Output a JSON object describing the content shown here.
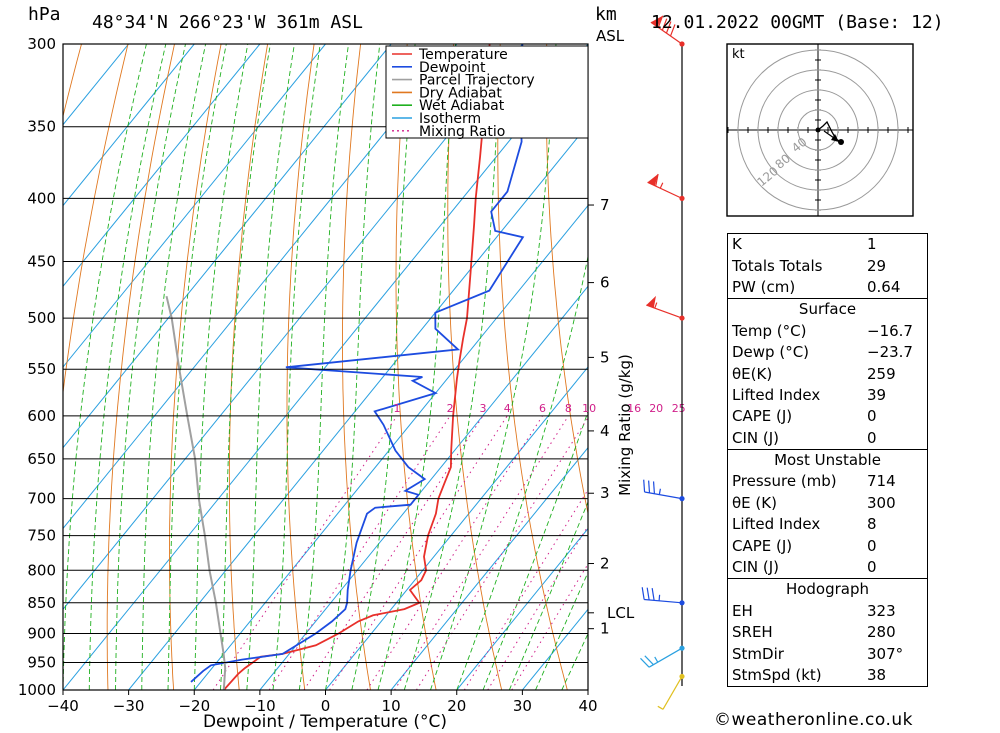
{
  "header": {
    "pressure_unit": "hPa",
    "location": "48°34'N  266°23'W  361m  ASL",
    "height_unit_km": "km",
    "height_unit_asl": "ASL",
    "datetime": "12.01.2022  00GMT  (Base: 12)"
  },
  "footer": {
    "credit": "weatheronline.co.uk"
  },
  "chart_data": {
    "type": "line",
    "subtype": "skew-T log-p diagram",
    "xlabel": "Dewpoint / Temperature (°C)",
    "ylabel": "hPa",
    "x_ticks": [
      -40,
      -30,
      -20,
      -10,
      0,
      10,
      20,
      30,
      40
    ],
    "p_ticks": [
      300,
      350,
      400,
      450,
      500,
      550,
      600,
      650,
      700,
      750,
      800,
      850,
      900,
      950,
      1000
    ],
    "ylim": [
      1000,
      300
    ],
    "xlim_at_1000hPa": [
      -40,
      40
    ],
    "height_km_labels": [
      {
        "label": "7",
        "p": 405
      },
      {
        "label": "6",
        "p": 468
      },
      {
        "label": "5",
        "p": 538
      },
      {
        "label": "4",
        "p": 617
      },
      {
        "label": "3",
        "p": 693
      },
      {
        "label": "2",
        "p": 790
      },
      {
        "label": "LCL",
        "p": 866
      },
      {
        "label": "1",
        "p": 892
      }
    ],
    "mixing_ratio_label": "Mixing Ratio (g/kg)",
    "mixing_ratio_values": [
      "1",
      "2",
      "3",
      "4",
      "6",
      "8",
      "10",
      "16",
      "20",
      "25"
    ],
    "legend": [
      {
        "name": "Temperature",
        "color": "#e8302a",
        "style": "solid"
      },
      {
        "name": "Dewpoint",
        "color": "#1d4ce0",
        "style": "solid"
      },
      {
        "name": "Parcel Trajectory",
        "color": "#a0a0a0",
        "style": "solid"
      },
      {
        "name": "Dry Adiabat",
        "color": "#e07820",
        "style": "solid"
      },
      {
        "name": "Wet Adiabat",
        "color": "#20b020",
        "style": "solid"
      },
      {
        "name": "Isotherm",
        "color": "#2aa0e0",
        "style": "solid"
      },
      {
        "name": "Mixing Ratio",
        "color": "#d0208a",
        "style": "dotted"
      }
    ],
    "series": [
      {
        "name": "Temperature",
        "color": "#e8302a",
        "points": [
          [
            1000,
            -15.5
          ],
          [
            970,
            -15.3
          ],
          [
            960,
            -15.0
          ],
          [
            940,
            -14.0
          ],
          [
            935,
            -11.0
          ],
          [
            920,
            -7.0
          ],
          [
            900,
            -5.0
          ],
          [
            880,
            -3.5
          ],
          [
            870,
            -2.0
          ],
          [
            860,
            2.0
          ],
          [
            850,
            3.5
          ],
          [
            830,
            0.5
          ],
          [
            815,
            1.0
          ],
          [
            800,
            0.5
          ],
          [
            780,
            -1.5
          ],
          [
            750,
            -3.5
          ],
          [
            720,
            -5.0
          ],
          [
            700,
            -6.5
          ],
          [
            680,
            -7.5
          ],
          [
            660,
            -8.5
          ],
          [
            640,
            -10.5
          ],
          [
            600,
            -14.5
          ],
          [
            560,
            -18.5
          ],
          [
            540,
            -20.5
          ],
          [
            520,
            -22.5
          ],
          [
            500,
            -24.5
          ],
          [
            460,
            -29.5
          ],
          [
            420,
            -35.0
          ],
          [
            400,
            -38.0
          ],
          [
            370,
            -42.5
          ],
          [
            340,
            -47.5
          ],
          [
            320,
            -51.0
          ],
          [
            300,
            -55.0
          ]
        ]
      },
      {
        "name": "Dewpoint",
        "color": "#1d4ce0",
        "points": [
          [
            985,
            -21.5
          ],
          [
            965,
            -21.0
          ],
          [
            955,
            -20.5
          ],
          [
            945,
            -16.5
          ],
          [
            935,
            -11.0
          ],
          [
            900,
            -8.5
          ],
          [
            880,
            -7.5
          ],
          [
            860,
            -7.0
          ],
          [
            850,
            -7.5
          ],
          [
            830,
            -9.0
          ],
          [
            800,
            -11.0
          ],
          [
            760,
            -13.5
          ],
          [
            720,
            -15.5
          ],
          [
            712,
            -15.0
          ],
          [
            708,
            -10.0
          ],
          [
            695,
            -10.0
          ],
          [
            690,
            -12.5
          ],
          [
            675,
            -11.0
          ],
          [
            660,
            -15.0
          ],
          [
            640,
            -19.0
          ],
          [
            610,
            -24.0
          ],
          [
            595,
            -27.0
          ],
          [
            575,
            -20.0
          ],
          [
            562,
            -25.0
          ],
          [
            558,
            -24.0
          ],
          [
            548,
            -46.0
          ],
          [
            530,
            -22.0
          ],
          [
            510,
            -28.0
          ],
          [
            495,
            -30.0
          ],
          [
            475,
            -24.5
          ],
          [
            430,
            -26.0
          ],
          [
            425,
            -31.0
          ],
          [
            410,
            -34.0
          ],
          [
            395,
            -34.0
          ],
          [
            360,
            -38.0
          ],
          [
            330,
            -44.0
          ],
          [
            300,
            -50.0
          ]
        ]
      },
      {
        "name": "Parcel Trajectory",
        "color": "#a0a0a0",
        "points": [
          [
            1000,
            -15.5
          ],
          [
            960,
            -18.0
          ],
          [
            935,
            -20.0
          ],
          [
            900,
            -23.0
          ],
          [
            850,
            -27.5
          ],
          [
            800,
            -32.5
          ],
          [
            750,
            -37.5
          ],
          [
            700,
            -43.0
          ],
          [
            650,
            -48.5
          ],
          [
            600,
            -55.0
          ],
          [
            550,
            -62.0
          ],
          [
            500,
            -69.5
          ],
          [
            480,
            -73.0
          ]
        ]
      }
    ],
    "winds": [
      {
        "p": 300,
        "dir": 305,
        "kt": 90
      },
      {
        "p": 400,
        "dir": 295,
        "kt": 65
      },
      {
        "p": 500,
        "dir": 290,
        "kt": 55
      },
      {
        "p": 700,
        "dir": 280,
        "kt": 35
      },
      {
        "p": 850,
        "dir": 275,
        "kt": 35
      },
      {
        "p": 925,
        "dir": 240,
        "kt": 25
      },
      {
        "p": 975,
        "dir": 210,
        "kt": 5
      }
    ],
    "hodograph": {
      "unit_label": "kt",
      "ring_labels": [
        "40",
        "80",
        "120"
      ],
      "points": [
        [
          0,
          0
        ],
        [
          5,
          4
        ],
        [
          9,
          8
        ],
        [
          14,
          -2
        ],
        [
          18,
          -9
        ],
        [
          23,
          -12
        ]
      ],
      "storm_motion_point": [
        12,
        -5
      ]
    }
  },
  "indices": {
    "general": [
      {
        "label": "K",
        "value": "1"
      },
      {
        "label": "Totals Totals",
        "value": "29"
      },
      {
        "label": "PW (cm)",
        "value": "0.64"
      }
    ],
    "surface_title": "Surface",
    "surface": [
      {
        "label": "Temp (°C)",
        "value": "-16.7"
      },
      {
        "label": "Dewp (°C)",
        "value": "-23.7"
      },
      {
        "label": "θE(K)",
        "value": "259"
      },
      {
        "label": "Lifted Index",
        "value": "39"
      },
      {
        "label": "CAPE (J)",
        "value": "0"
      },
      {
        "label": "CIN (J)",
        "value": "0"
      }
    ],
    "most_unstable_title": "Most Unstable",
    "most_unstable": [
      {
        "label": "Pressure (mb)",
        "value": "714"
      },
      {
        "label": "θE (K)",
        "value": "300"
      },
      {
        "label": "Lifted Index",
        "value": "8"
      },
      {
        "label": "CAPE (J)",
        "value": "0"
      },
      {
        "label": "CIN (J)",
        "value": "0"
      }
    ],
    "hodograph_title": "Hodograph",
    "hodograph": [
      {
        "label": "EH",
        "value": "323"
      },
      {
        "label": "SREH",
        "value": "280"
      },
      {
        "label": "StmDir",
        "value": "307°"
      },
      {
        "label": "StmSpd (kt)",
        "value": "38"
      }
    ]
  }
}
